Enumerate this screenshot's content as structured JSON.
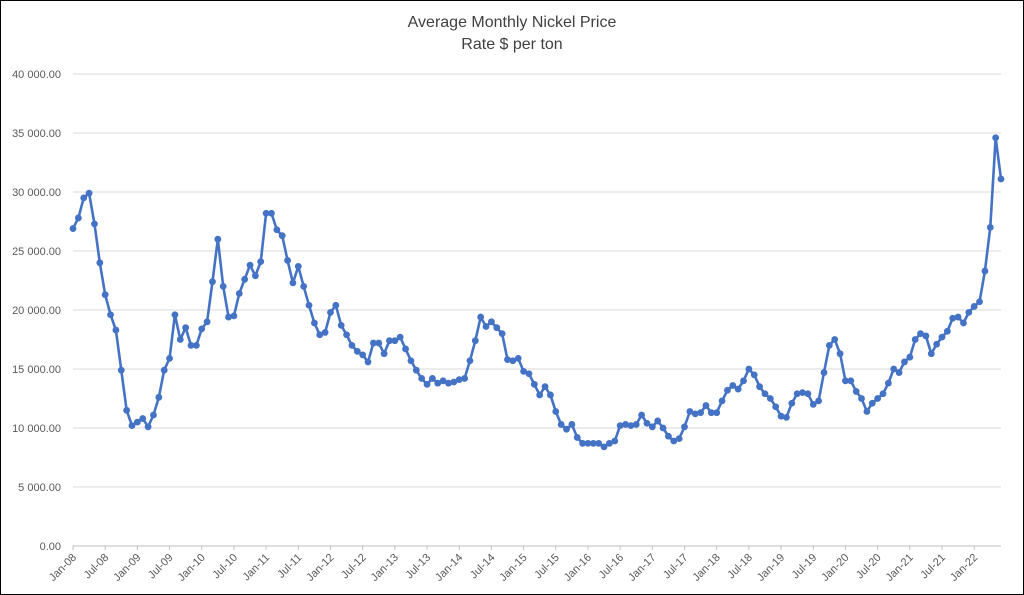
{
  "chart_data": {
    "type": "line",
    "title": "Average Monthly Nickel Price",
    "subtitle": "Rate $ per ton",
    "xlabel": "",
    "ylabel": "",
    "ylim": [
      0,
      40000
    ],
    "y_ticks": [
      "0.00",
      "5 000.00",
      "10 000.00",
      "15 000.00",
      "20 000.00",
      "25 000.00",
      "30 000.00",
      "35 000.00",
      "40 000.00"
    ],
    "x_ticks": [
      "Jan-08",
      "Jul-08",
      "Jan-09",
      "Jul-09",
      "Jan-10",
      "Jul-10",
      "Jan-11",
      "Jul-11",
      "Jan-12",
      "Jul-12",
      "Jan-13",
      "Jul-13",
      "Jan-14",
      "Jul-14",
      "Jan-15",
      "Jul-15",
      "Jan-16",
      "Jul-16",
      "Jan-17",
      "Jul-17",
      "Jan-18",
      "Jul-18",
      "Jan-19",
      "Jul-19",
      "Jan-20",
      "Jul-20",
      "Jan-21",
      "Jul-21",
      "Jan-22"
    ],
    "grid": true,
    "legend": "none",
    "series_color": "#4472C4",
    "x_start": "Jan-08",
    "x_end": "Apr-22",
    "values": [
      26900,
      27800,
      29500,
      29900,
      27300,
      24000,
      21300,
      19600,
      18300,
      14900,
      11500,
      10200,
      10500,
      10800,
      10100,
      11100,
      12600,
      14900,
      15900,
      19600,
      17500,
      18500,
      17000,
      17000,
      18400,
      19000,
      22400,
      26000,
      22000,
      19400,
      19500,
      21400,
      22600,
      23800,
      22900,
      24100,
      28200,
      28200,
      26800,
      26300,
      24200,
      22300,
      23700,
      22000,
      20400,
      18900,
      17900,
      18100,
      19800,
      20400,
      18700,
      17900,
      17000,
      16500,
      16200,
      15600,
      17200,
      17200,
      16300,
      17400,
      17400,
      17700,
      16700,
      15700,
      14900,
      14200,
      13700,
      14200,
      13800,
      14000,
      13800,
      13900,
      14100,
      14200,
      15700,
      17400,
      19400,
      18600,
      19000,
      18500,
      18000,
      15800,
      15700,
      15900,
      14800,
      14600,
      13700,
      12800,
      13500,
      12800,
      11400,
      10300,
      9900,
      10300,
      9200,
      8700,
      8700,
      8700,
      8700,
      8400,
      8700,
      8900,
      10200,
      10300,
      10200,
      10300,
      11100,
      10400,
      10100,
      10600,
      10000,
      9300,
      8900,
      9100,
      10100,
      11400,
      11200,
      11300,
      11900,
      11300,
      11300,
      12300,
      13200,
      13600,
      13300,
      14000,
      15000,
      14500,
      13500,
      12900,
      12500,
      11800,
      11000,
      10900,
      12100,
      12900,
      13000,
      12900,
      12000,
      12300,
      14700,
      17000,
      17500,
      16300,
      14000,
      14000,
      13100,
      12500,
      11400,
      12100,
      12500,
      12900,
      13800,
      15000,
      14700,
      15600,
      16000,
      17500,
      18000,
      17800,
      16300,
      17100,
      17700,
      18200,
      19300,
      19400,
      18900,
      19800,
      20300,
      20700,
      23300,
      27000,
      34600,
      31100
    ]
  }
}
